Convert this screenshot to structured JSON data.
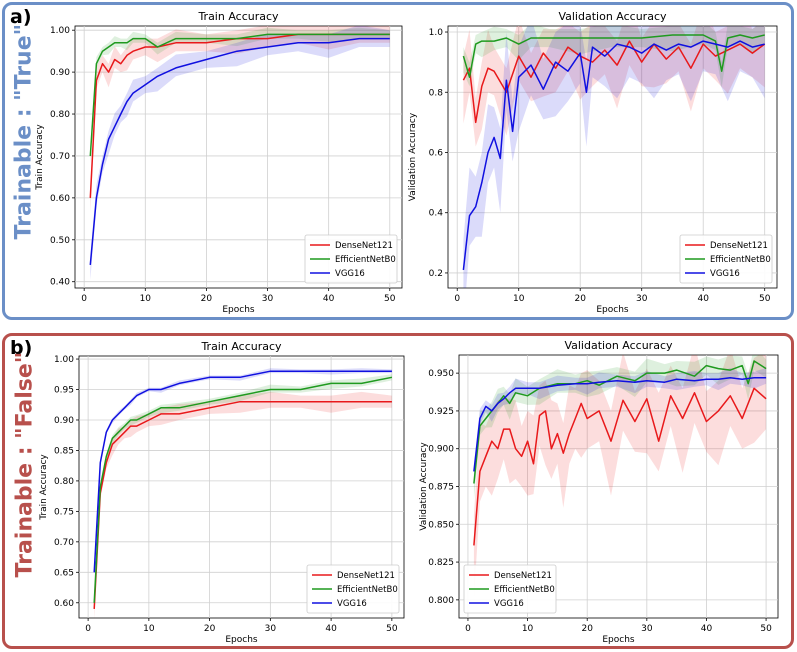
{
  "panels": {
    "a": {
      "label": "a)",
      "side_label": "Trainable : \"True\"",
      "side_color": "#6b8fc7",
      "border_color": "#6b8fc7"
    },
    "b": {
      "label": "b)",
      "side_label": "Trainable : \"False\"",
      "side_color": "#b8504c",
      "border_color": "#b8504c"
    }
  },
  "colors": {
    "DenseNet121": "#e8191b",
    "EfficientNetB0": "#1f9a1f",
    "VGG16": "#1010e0"
  },
  "chart_data": [
    {
      "id": "a-train",
      "type": "line",
      "title": "Train Accuracy",
      "xlabel": "Epochs",
      "ylabel": "Train Accuracy",
      "xlim": [
        -1.5,
        52
      ],
      "ylim": [
        0.385,
        1.01
      ],
      "xticks": [
        0,
        10,
        20,
        30,
        40,
        50
      ],
      "yticks": [
        0.4,
        0.5,
        0.6,
        0.7,
        0.8,
        0.9,
        1.0
      ],
      "legend": "lower-right",
      "grid": true,
      "series": [
        {
          "name": "DenseNet121",
          "x": [
            1,
            2,
            3,
            4,
            5,
            6,
            7,
            8,
            10,
            12,
            15,
            20,
            25,
            30,
            35,
            40,
            45,
            50
          ],
          "values": [
            0.6,
            0.88,
            0.92,
            0.9,
            0.93,
            0.92,
            0.94,
            0.95,
            0.96,
            0.96,
            0.97,
            0.97,
            0.98,
            0.98,
            0.99,
            0.99,
            0.99,
            0.99
          ],
          "band": 0.02
        },
        {
          "name": "EfficientNetB0",
          "x": [
            1,
            2,
            3,
            4,
            5,
            6,
            7,
            8,
            10,
            12,
            15,
            20,
            25,
            30,
            35,
            40,
            45,
            50
          ],
          "values": [
            0.7,
            0.92,
            0.95,
            0.96,
            0.97,
            0.97,
            0.97,
            0.98,
            0.98,
            0.96,
            0.98,
            0.98,
            0.98,
            0.99,
            0.99,
            0.99,
            0.99,
            0.99
          ],
          "band": 0.01
        },
        {
          "name": "VGG16",
          "x": [
            1,
            2,
            3,
            4,
            5,
            6,
            7,
            8,
            10,
            12,
            15,
            20,
            25,
            30,
            35,
            40,
            45,
            50
          ],
          "values": [
            0.44,
            0.6,
            0.68,
            0.74,
            0.77,
            0.8,
            0.83,
            0.85,
            0.87,
            0.89,
            0.91,
            0.93,
            0.95,
            0.96,
            0.97,
            0.97,
            0.98,
            0.98
          ],
          "band": 0.02
        }
      ]
    },
    {
      "id": "a-val",
      "type": "line",
      "title": "Validation Accuracy",
      "xlabel": "Epochs",
      "ylabel": "Validation Accuracy",
      "xlim": [
        -1.5,
        52
      ],
      "ylim": [
        0.15,
        1.02
      ],
      "xticks": [
        0,
        10,
        20,
        30,
        40,
        50
      ],
      "yticks": [
        0.2,
        0.4,
        0.6,
        0.8,
        1.0
      ],
      "legend": "lower-right",
      "grid": true,
      "series": [
        {
          "name": "DenseNet121",
          "x": [
            1,
            2,
            3,
            4,
            5,
            6,
            8,
            10,
            12,
            14,
            16,
            18,
            20,
            22,
            24,
            26,
            28,
            30,
            32,
            34,
            36,
            38,
            40,
            42,
            44,
            46,
            48,
            50
          ],
          "values": [
            0.84,
            0.88,
            0.7,
            0.82,
            0.88,
            0.87,
            0.8,
            0.92,
            0.85,
            0.93,
            0.88,
            0.95,
            0.92,
            0.9,
            0.94,
            0.89,
            0.97,
            0.9,
            0.96,
            0.91,
            0.95,
            0.88,
            0.96,
            0.92,
            0.94,
            0.96,
            0.93,
            0.96
          ],
          "band": 0.08
        },
        {
          "name": "EfficientNetB0",
          "x": [
            1,
            2,
            3,
            4,
            6,
            8,
            10,
            12,
            15,
            20,
            25,
            30,
            35,
            40,
            42,
            43,
            44,
            46,
            48,
            50
          ],
          "values": [
            0.92,
            0.85,
            0.96,
            0.97,
            0.97,
            0.98,
            0.96,
            0.98,
            0.98,
            0.98,
            0.98,
            0.98,
            0.99,
            0.99,
            0.97,
            0.87,
            0.98,
            0.99,
            0.98,
            0.99
          ],
          "band": 0.03
        },
        {
          "name": "VGG16",
          "x": [
            1,
            2,
            3,
            4,
            5,
            6,
            7,
            8,
            9,
            10,
            12,
            14,
            16,
            18,
            20,
            21,
            22,
            24,
            26,
            28,
            30,
            32,
            34,
            36,
            38,
            40,
            42,
            44,
            46,
            48,
            50
          ],
          "values": [
            0.21,
            0.39,
            0.42,
            0.5,
            0.6,
            0.65,
            0.58,
            0.84,
            0.67,
            0.85,
            0.89,
            0.81,
            0.9,
            0.87,
            0.93,
            0.8,
            0.95,
            0.92,
            0.96,
            0.95,
            0.93,
            0.96,
            0.94,
            0.96,
            0.95,
            0.97,
            0.96,
            0.95,
            0.97,
            0.95,
            0.96
          ],
          "band": 0.1
        }
      ]
    },
    {
      "id": "b-train",
      "type": "line",
      "title": "Train Accuracy",
      "xlabel": "Epochs",
      "ylabel": "Train Accuracy",
      "xlim": [
        -1.5,
        52
      ],
      "ylim": [
        0.575,
        1.005
      ],
      "xticks": [
        0,
        10,
        20,
        30,
        40,
        50
      ],
      "yticks": [
        0.6,
        0.65,
        0.7,
        0.75,
        0.8,
        0.85,
        0.9,
        0.95,
        1.0
      ],
      "legend": "lower-right",
      "grid": true,
      "series": [
        {
          "name": "DenseNet121",
          "x": [
            1,
            2,
            3,
            4,
            5,
            6,
            7,
            8,
            10,
            12,
            15,
            20,
            25,
            30,
            35,
            40,
            45,
            50
          ],
          "values": [
            0.59,
            0.78,
            0.83,
            0.86,
            0.87,
            0.88,
            0.89,
            0.89,
            0.9,
            0.91,
            0.91,
            0.92,
            0.93,
            0.93,
            0.93,
            0.93,
            0.93,
            0.93
          ],
          "band": 0.01
        },
        {
          "name": "EfficientNetB0",
          "x": [
            1,
            2,
            3,
            4,
            5,
            6,
            7,
            8,
            10,
            12,
            15,
            20,
            25,
            30,
            35,
            40,
            45,
            50
          ],
          "values": [
            0.6,
            0.79,
            0.84,
            0.87,
            0.88,
            0.89,
            0.9,
            0.9,
            0.91,
            0.92,
            0.92,
            0.93,
            0.94,
            0.95,
            0.95,
            0.96,
            0.96,
            0.97
          ],
          "band": 0.005
        },
        {
          "name": "VGG16",
          "x": [
            1,
            2,
            3,
            4,
            5,
            6,
            7,
            8,
            10,
            12,
            15,
            20,
            25,
            30,
            35,
            40,
            45,
            50
          ],
          "values": [
            0.65,
            0.83,
            0.88,
            0.9,
            0.91,
            0.92,
            0.93,
            0.94,
            0.95,
            0.95,
            0.96,
            0.97,
            0.97,
            0.98,
            0.98,
            0.98,
            0.98,
            0.98
          ],
          "band": 0.003
        }
      ]
    },
    {
      "id": "b-val",
      "type": "line",
      "title": "Validation Accuracy",
      "xlabel": "Epochs",
      "ylabel": "Validation Accuracy",
      "xlim": [
        -1.5,
        52
      ],
      "ylim": [
        0.788,
        0.962
      ],
      "xticks": [
        0,
        10,
        20,
        30,
        40,
        50
      ],
      "yticks": [
        0.8,
        0.825,
        0.85,
        0.875,
        0.9,
        0.925,
        0.95
      ],
      "legend": "lower-left",
      "grid": true,
      "series": [
        {
          "name": "DenseNet121",
          "x": [
            1,
            2,
            3,
            4,
            5,
            6,
            7,
            8,
            9,
            10,
            11,
            12,
            13,
            14,
            15,
            16,
            17,
            18,
            19,
            20,
            22,
            24,
            26,
            28,
            30,
            32,
            34,
            36,
            38,
            40,
            42,
            44,
            46,
            48,
            50
          ],
          "values": [
            0.836,
            0.885,
            0.895,
            0.905,
            0.9,
            0.913,
            0.913,
            0.9,
            0.895,
            0.905,
            0.89,
            0.922,
            0.925,
            0.9,
            0.91,
            0.897,
            0.91,
            0.92,
            0.93,
            0.92,
            0.925,
            0.905,
            0.932,
            0.918,
            0.933,
            0.905,
            0.935,
            0.92,
            0.937,
            0.918,
            0.925,
            0.935,
            0.92,
            0.94,
            0.933
          ],
          "band": 0.02
        },
        {
          "name": "EfficientNetB0",
          "x": [
            1,
            2,
            3,
            4,
            5,
            6,
            7,
            8,
            10,
            12,
            15,
            18,
            20,
            22,
            25,
            28,
            30,
            33,
            35,
            38,
            40,
            42,
            44,
            46,
            47,
            48,
            50
          ],
          "values": [
            0.877,
            0.915,
            0.92,
            0.925,
            0.93,
            0.935,
            0.93,
            0.937,
            0.935,
            0.94,
            0.943,
            0.943,
            0.945,
            0.942,
            0.948,
            0.945,
            0.95,
            0.95,
            0.952,
            0.948,
            0.955,
            0.953,
            0.952,
            0.955,
            0.943,
            0.958,
            0.953
          ],
          "band": 0.006
        },
        {
          "name": "VGG16",
          "x": [
            1,
            2,
            3,
            4,
            5,
            6,
            7,
            8,
            10,
            12,
            15,
            18,
            20,
            22,
            25,
            28,
            30,
            33,
            35,
            38,
            40,
            42,
            44,
            46,
            48,
            50
          ],
          "values": [
            0.885,
            0.92,
            0.928,
            0.925,
            0.93,
            0.933,
            0.937,
            0.94,
            0.94,
            0.94,
            0.942,
            0.943,
            0.943,
            0.944,
            0.945,
            0.944,
            0.945,
            0.944,
            0.946,
            0.945,
            0.946,
            0.946,
            0.947,
            0.946,
            0.947,
            0.947
          ],
          "band": 0.004
        }
      ]
    }
  ]
}
